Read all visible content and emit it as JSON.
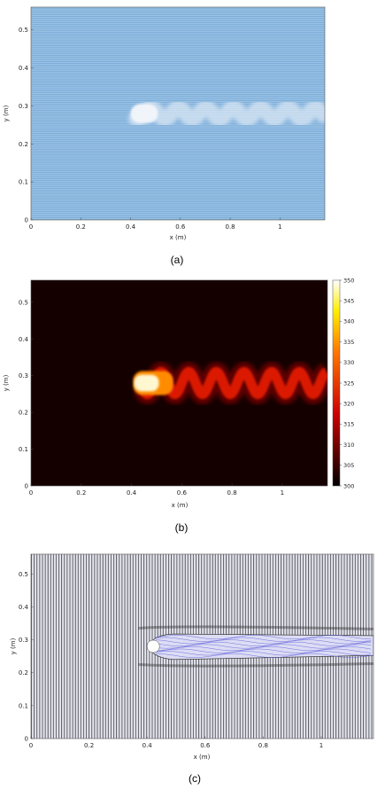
{
  "chart_data": [
    {
      "type": "heatmap",
      "panel": "a",
      "caption": "(a)",
      "xlabel": "x (m)",
      "ylabel": "y (m)",
      "xlim": [
        0,
        1.18
      ],
      "ylim": [
        0,
        0.56
      ],
      "xticks": [
        0,
        0.2,
        0.4,
        0.6,
        0.8,
        1
      ],
      "yticks": [
        0,
        0.1,
        0.2,
        0.3,
        0.4,
        0.5
      ],
      "background_color": "#8fbbe0",
      "plume_color": "#f4f7fb",
      "plume": {
        "source_x": 0.4,
        "center_y": 0.28,
        "width": 0.05,
        "wavelength": 0.11,
        "amplitude": 0.015,
        "extent_x": 1.18
      }
    },
    {
      "type": "heatmap",
      "panel": "b",
      "caption": "(b)",
      "xlabel": "x (m)",
      "ylabel": "y (m)",
      "xlim": [
        0,
        1.18
      ],
      "ylim": [
        0,
        0.56
      ],
      "xticks": [
        0,
        0.2,
        0.4,
        0.6,
        0.8,
        1
      ],
      "yticks": [
        0,
        0.1,
        0.2,
        0.3,
        0.4,
        0.5
      ],
      "colorbar": {
        "min": 300,
        "max": 350,
        "ticks": [
          300,
          305,
          310,
          315,
          320,
          325,
          330,
          335,
          340,
          345,
          350
        ],
        "colormap": "hot"
      },
      "background_value": 300,
      "plume": {
        "source_x": 0.4,
        "center_y": 0.28,
        "width": 0.05,
        "wavelength": 0.11,
        "amplitude": 0.03,
        "peak_value": 350,
        "extent_x": 1.18
      }
    },
    {
      "type": "streamline",
      "panel": "c",
      "caption": "(c)",
      "xlabel": "x (m)",
      "ylabel": "y (m)",
      "xlim": [
        0,
        1.18
      ],
      "ylim": [
        0,
        0.56
      ],
      "xticks": [
        0,
        0.2,
        0.4,
        0.6,
        0.8,
        1
      ],
      "yticks": [
        0,
        0.1,
        0.2,
        0.3,
        0.4,
        0.5
      ],
      "line_color": "#3a3a3a",
      "wake_color": "#5a5ad8",
      "plume": {
        "source_x": 0.4,
        "center_y": 0.28,
        "width": 0.05,
        "extent_x": 1.18
      }
    }
  ]
}
